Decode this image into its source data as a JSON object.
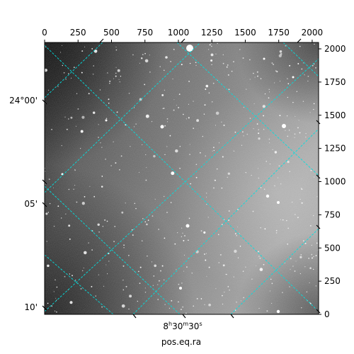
{
  "figure": {
    "xlabel": "pos.eq.ra",
    "pixel_axis_range": {
      "x": [
        0,
        2048
      ],
      "y": [
        0,
        2048
      ]
    },
    "top_ticks": [
      "0",
      "250",
      "500",
      "750",
      "1000",
      "1250",
      "1500",
      "1750",
      "2000"
    ],
    "right_ticks": [
      "0",
      "250",
      "500",
      "750",
      "1000",
      "1250",
      "1500",
      "1750",
      "2000"
    ],
    "dec_ticks": [
      "24°00'",
      "05'",
      "10'"
    ],
    "ra_tick": {
      "base": "8",
      "h": "h",
      "m_val": "30",
      "m": "m",
      "s_val": "30",
      "s": "s"
    },
    "grid_color": "#00e0e0",
    "image_dark": "#151515",
    "image_bright": "#a8a8a8"
  }
}
